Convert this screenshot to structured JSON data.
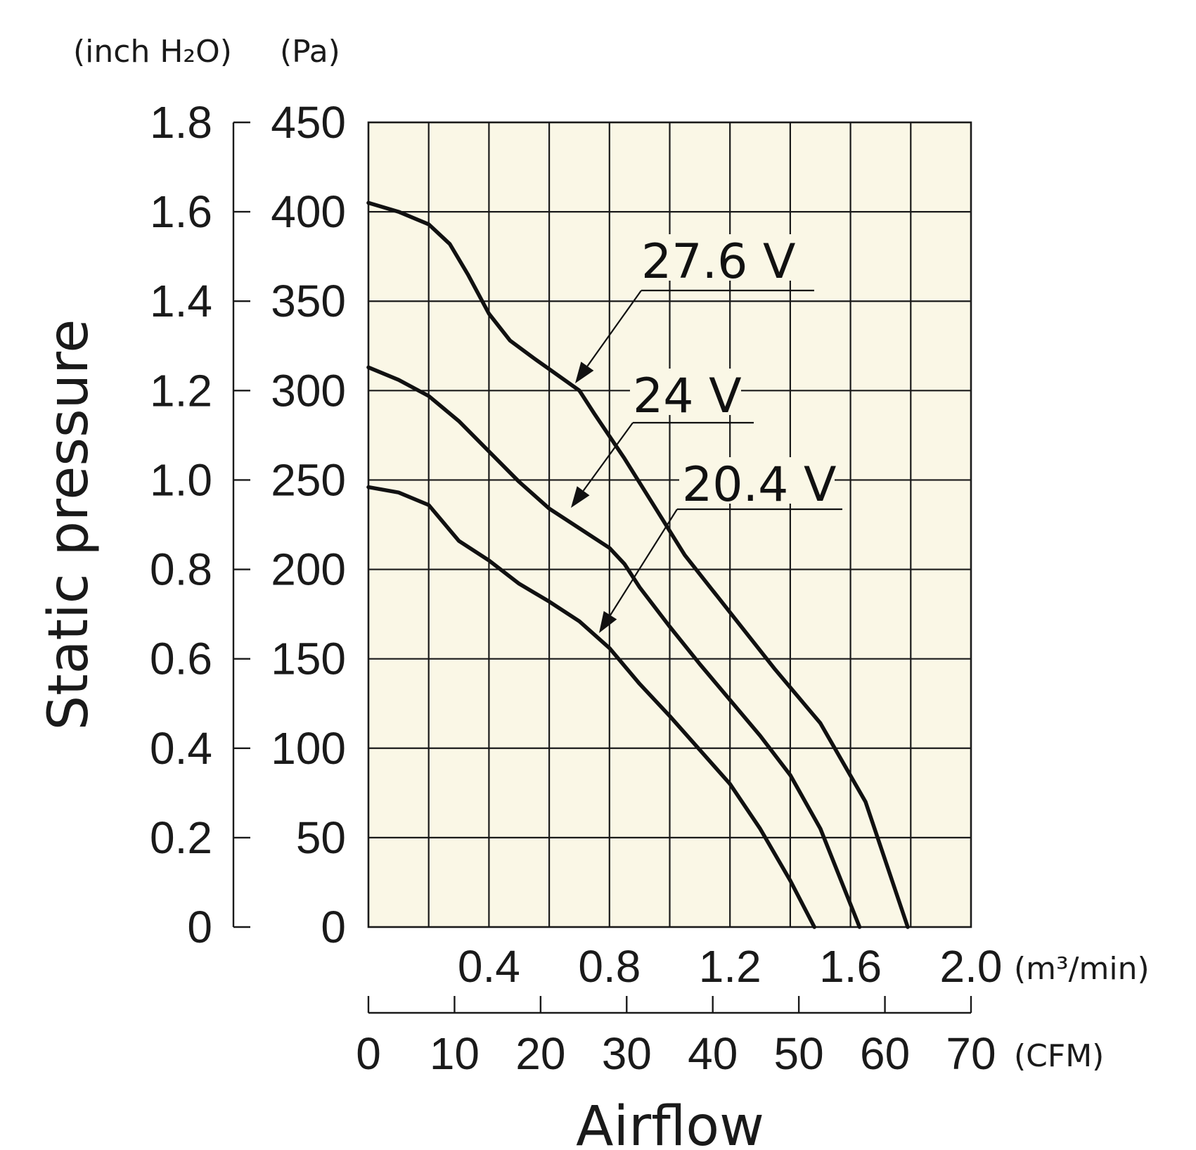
{
  "chart_data": {
    "type": "line",
    "xlabel": "Airflow",
    "ylabel": "Static pressure",
    "x_unit": "(m³/min)",
    "x2_unit": "(CFM)",
    "y_unit": "(Pa)",
    "y2_unit": "(inch H₂O)",
    "xlim": [
      0,
      2.0
    ],
    "ylim": [
      0,
      450
    ],
    "x2lim": [
      0,
      70
    ],
    "y2lim": [
      0,
      1.8
    ],
    "grid": true,
    "background_color": "#faf7e6",
    "x_ticks": [
      0,
      0.2,
      0.4,
      0.6,
      0.8,
      1.0,
      1.2,
      1.4,
      1.6,
      1.8,
      2.0
    ],
    "x_tick_labels": [
      "0.4",
      "0.8",
      "1.2",
      "1.6",
      "2.0"
    ],
    "x2_tick_labels": [
      "0",
      "10",
      "20",
      "30",
      "40",
      "50",
      "60",
      "70"
    ],
    "y_tick_labels": [
      "0",
      "50",
      "100",
      "150",
      "200",
      "250",
      "300",
      "350",
      "400",
      "450"
    ],
    "y2_tick_labels": [
      "0",
      "0.2",
      "0.4",
      "0.6",
      "0.8",
      "1.0",
      "1.2",
      "1.4",
      "1.6",
      "1.8"
    ],
    "series": [
      {
        "name": "27.6 V",
        "x": [
          0,
          0.1,
          0.2,
          0.27,
          0.33,
          0.4,
          0.47,
          0.55,
          0.6,
          0.7,
          0.75,
          0.85,
          0.95,
          1.05,
          1.2,
          1.35,
          1.5,
          1.65,
          1.79
        ],
        "y": [
          405,
          400,
          393,
          382,
          365,
          343,
          328,
          318,
          312,
          300,
          287,
          262,
          235,
          208,
          176,
          144,
          114,
          70,
          0
        ]
      },
      {
        "name": "24 V",
        "x": [
          0,
          0.1,
          0.2,
          0.3,
          0.4,
          0.5,
          0.6,
          0.7,
          0.8,
          0.85,
          0.9,
          1.0,
          1.1,
          1.2,
          1.3,
          1.4,
          1.5,
          1.63
        ],
        "y": [
          313,
          306,
          297,
          283,
          266,
          249,
          234,
          223,
          212,
          203,
          190,
          168,
          147,
          127,
          107,
          85,
          55,
          0
        ]
      },
      {
        "name": "20.4 V",
        "x": [
          0,
          0.1,
          0.2,
          0.3,
          0.4,
          0.5,
          0.6,
          0.7,
          0.8,
          0.9,
          1.0,
          1.1,
          1.2,
          1.3,
          1.4,
          1.48
        ],
        "y": [
          246,
          243,
          236,
          216,
          205,
          192,
          182,
          171,
          156,
          136,
          118,
          99,
          80,
          55,
          26,
          0
        ]
      }
    ],
    "annotations": [
      {
        "text": "27.6 V",
        "points_to_series": "27.6 V"
      },
      {
        "text": "24 V",
        "points_to_series": "24 V"
      },
      {
        "text": "20.4 V",
        "points_to_series": "20.4 V"
      }
    ]
  }
}
